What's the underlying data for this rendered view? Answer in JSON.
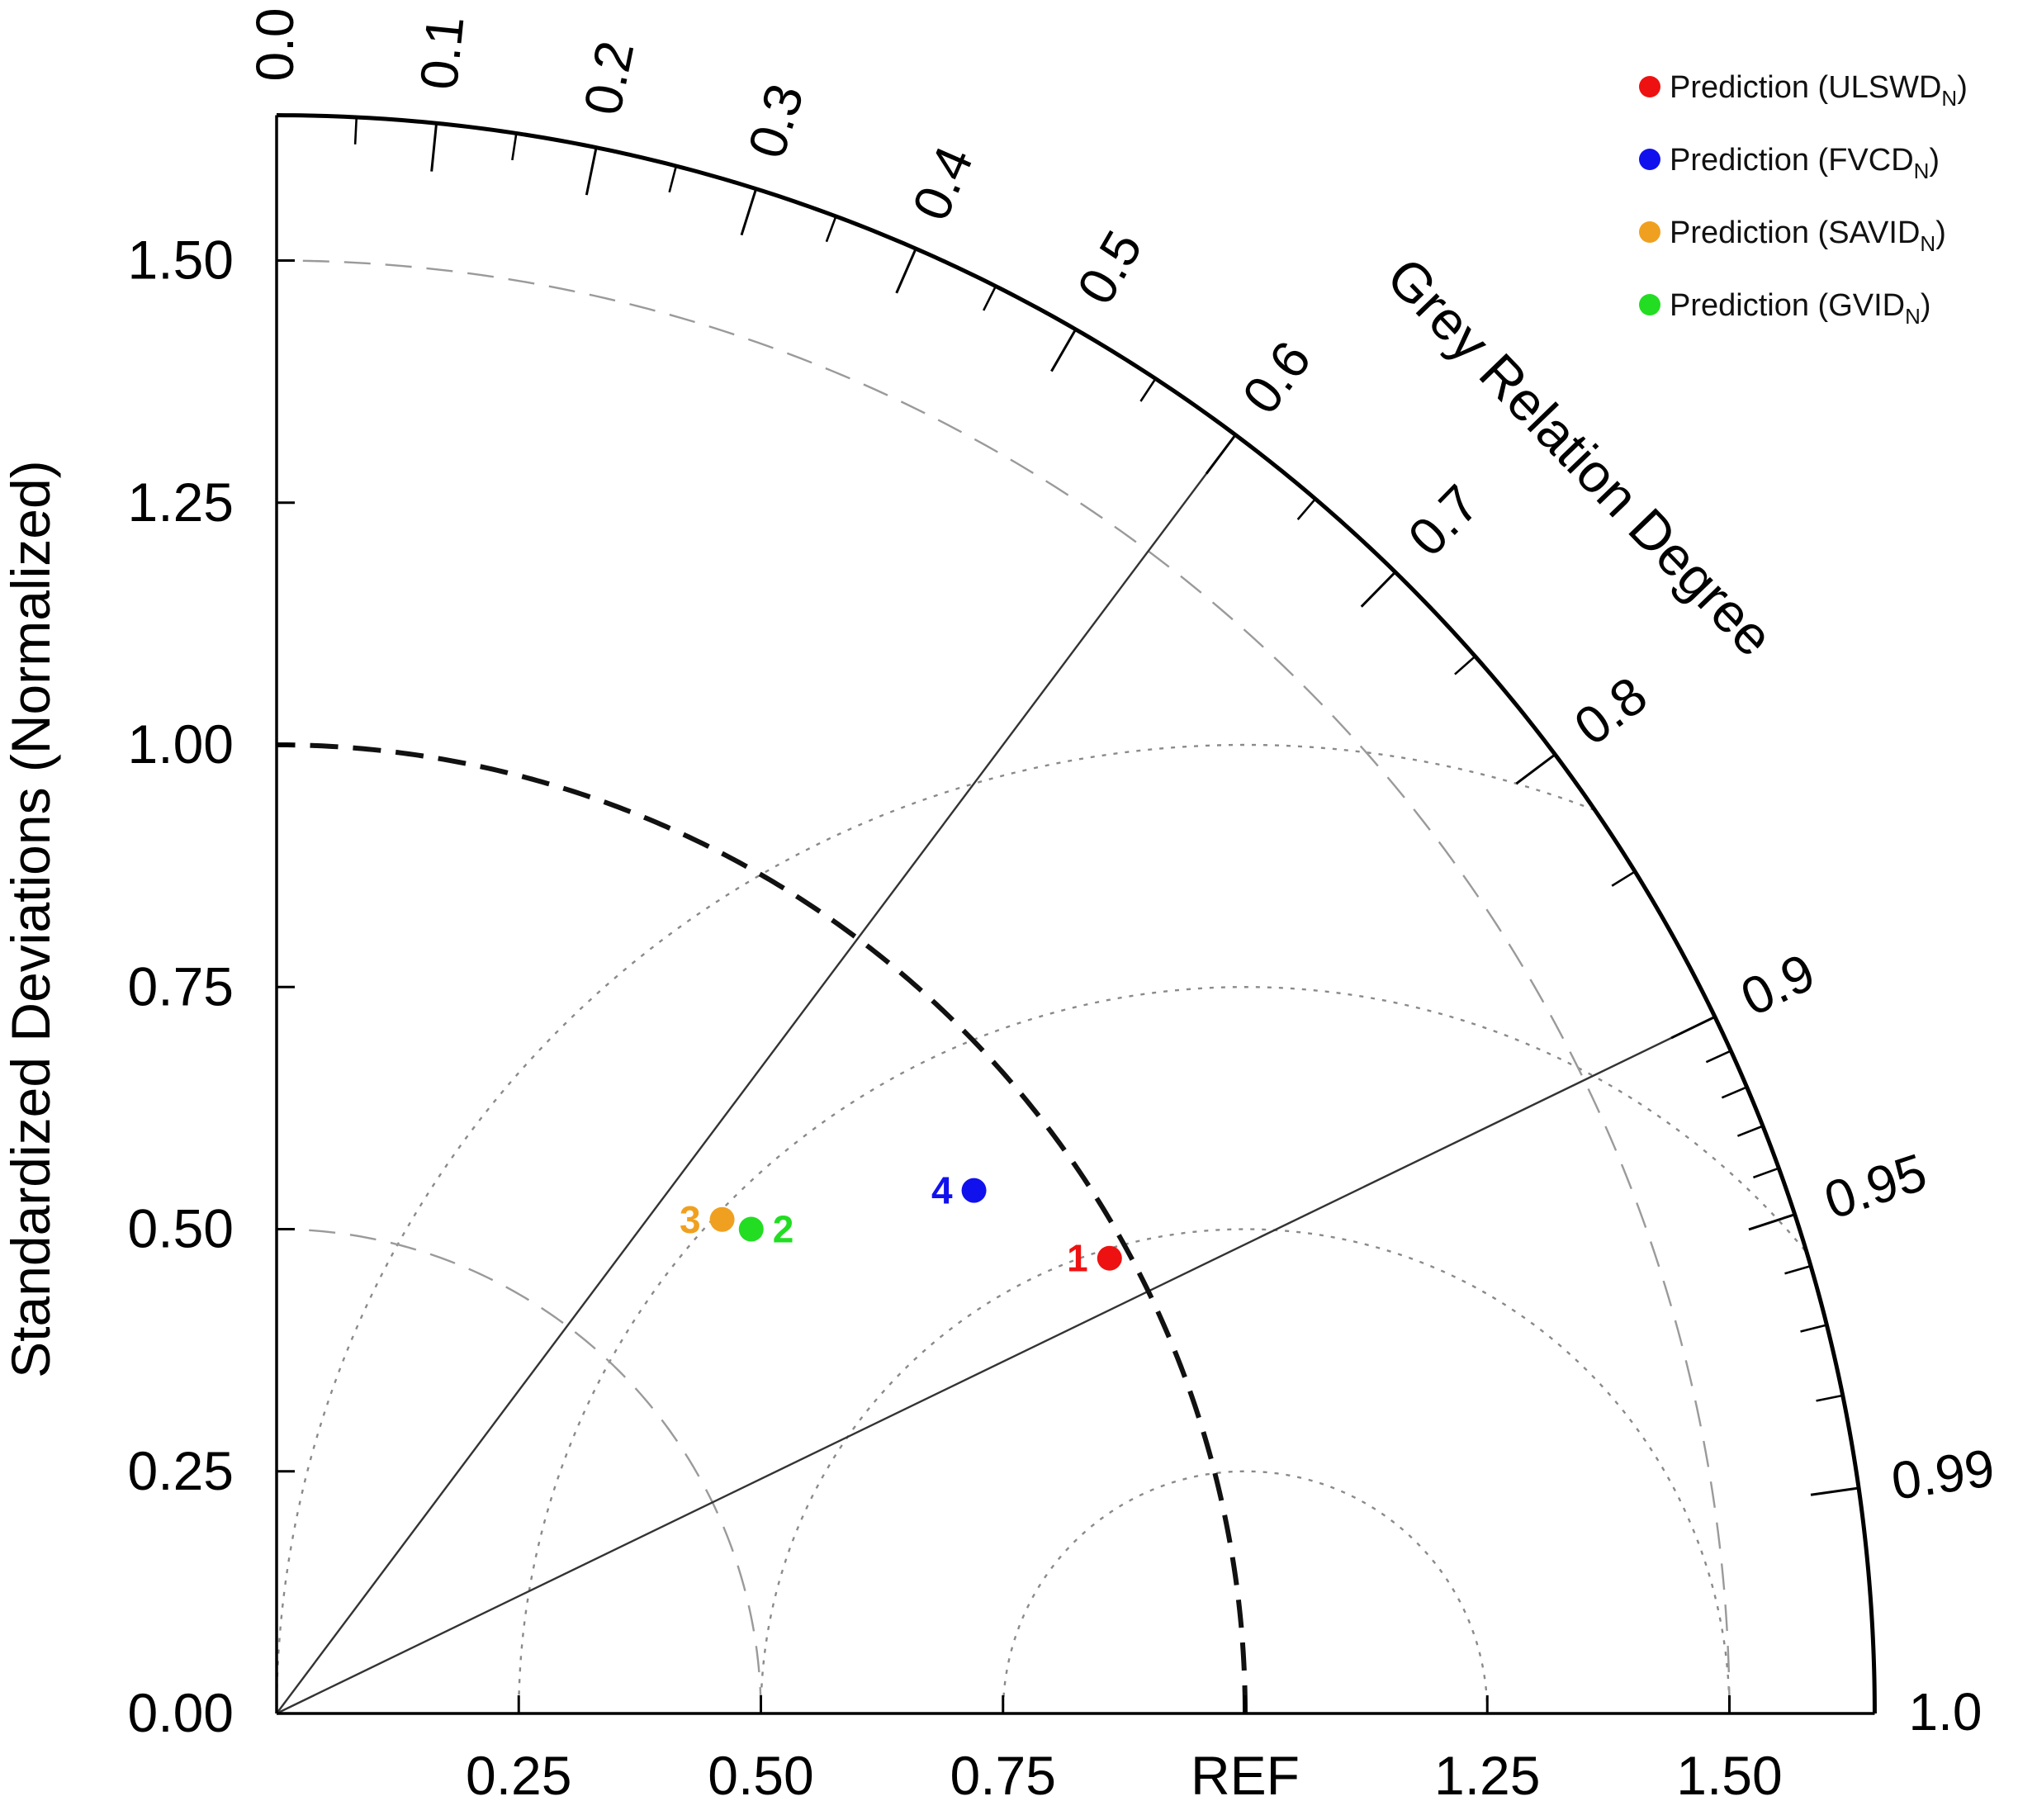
{
  "chart_data": {
    "type": "taylor",
    "y_axis_title": "Standardized Deviations (Normalized)",
    "arc_axis_title": "Grey Relation Degree",
    "ref_label": "REF",
    "ref_std": 1.0,
    "max_std": 1.65,
    "y_ticks": [
      "0.00",
      "0.25",
      "0.50",
      "0.75",
      "1.00",
      "1.25",
      "1.50"
    ],
    "y_tick_values": [
      0,
      0.25,
      0.5,
      0.75,
      1.0,
      1.25,
      1.5
    ],
    "x_ticks": [
      "0.25",
      "0.50",
      "0.75",
      "REF",
      "1.25",
      "1.50"
    ],
    "x_tick_values": [
      0.25,
      0.5,
      0.75,
      1.0,
      1.25,
      1.5
    ],
    "arc_labels": [
      "0.0",
      "0.1",
      "0.2",
      "0.3",
      "0.4",
      "0.5",
      "0.6",
      "0.7",
      "0.8",
      "0.9",
      "0.95",
      "0.99",
      "1.0"
    ],
    "arc_label_values": [
      0.0,
      0.1,
      0.2,
      0.3,
      0.4,
      0.5,
      0.6,
      0.7,
      0.8,
      0.9,
      0.95,
      0.99,
      1.0
    ],
    "radial_lines_at": [
      0.6,
      0.9
    ],
    "std_dashed_arcs": [
      0.5,
      1.5
    ],
    "rms_arcs": [
      0.25,
      0.5,
      0.75,
      1.0
    ],
    "points": [
      {
        "id": "1",
        "name": "Prediction (ULSWD",
        "subscript": "N",
        "suffix": ")",
        "color": "#ee1111",
        "x": 0.86,
        "y": 0.47
      },
      {
        "id": "2",
        "name": "Prediction (GVID",
        "subscript": "N",
        "suffix": ")",
        "color": "#22dd22",
        "x": 0.49,
        "y": 0.5
      },
      {
        "id": "3",
        "name": "Prediction (SAVID",
        "subscript": "N",
        "suffix": ")",
        "color": "#f0a020",
        "x": 0.46,
        "y": 0.51
      },
      {
        "id": "4",
        "name": "Prediction (FVCD",
        "subscript": "N",
        "suffix": ")",
        "color": "#1111ee",
        "x": 0.72,
        "y": 0.54
      }
    ],
    "legend_order": [
      "1",
      "4",
      "3",
      "2"
    ],
    "legend_position": "top-right"
  }
}
